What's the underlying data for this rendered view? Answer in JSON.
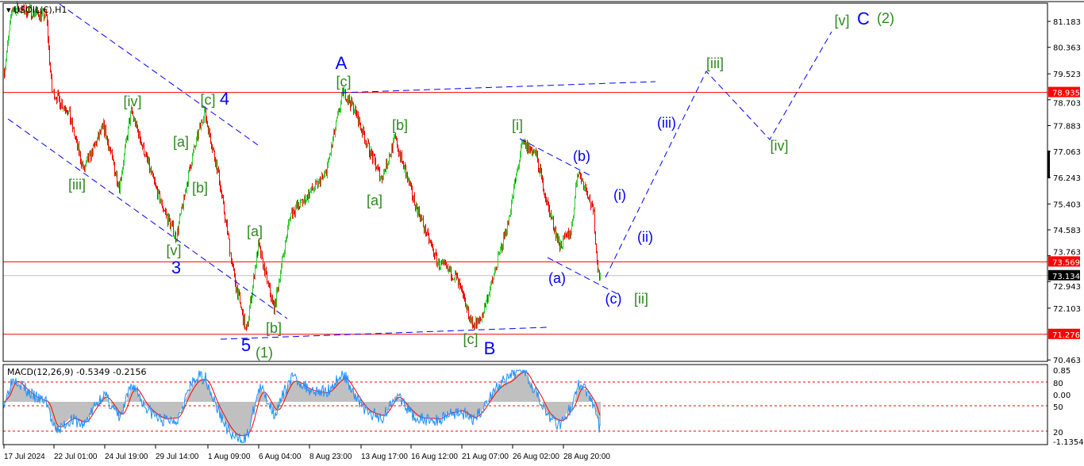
{
  "chart_data": {
    "type": "candlestick",
    "title": "USOIL(€),H1",
    "x_ticks": [
      "17 Jul 2024",
      "22 Jul 01:00",
      "24 Jul 19:00",
      "29 Jul 14:00",
      "1 Aug 09:00",
      "6 Aug 04:00",
      "8 Aug 23:00",
      "13 Aug 17:00",
      "16 Aug 12:00",
      "21 Aug 07:00",
      "26 Aug 02:00",
      "28 Aug 20:00"
    ],
    "y_ticks": [
      "81.183",
      "80.363",
      "79.523",
      "78.703",
      "77.883",
      "77.063",
      "76.243",
      "75.403",
      "74.583",
      "73.763",
      "72.943",
      "72.103",
      "70.463"
    ],
    "ylim": [
      70.4,
      81.6
    ],
    "grid": false,
    "colors": {
      "up": "#32cd32",
      "down": "#ff0000",
      "level": "#ff0000",
      "current": "#c0c0c0",
      "trendline": "#0000ff"
    },
    "horizontal_levels": [
      {
        "label": "78.935",
        "price": 78.935
      },
      {
        "label": "73.569",
        "price": 73.569
      },
      {
        "label": "71.276",
        "price": 71.276
      }
    ],
    "current_price": {
      "label": "73.134",
      "price": 73.134
    },
    "price_path": [
      {
        "t": "17 Jul 00:00",
        "price": 79.6
      },
      {
        "t": "17 Jul 19:00",
        "price": 81.6
      },
      {
        "t": "19 Jul 19:00",
        "price": 81.5
      },
      {
        "t": "21 Jul 06:00",
        "price": 81.35
      },
      {
        "t": "21 Jul 19:00",
        "price": 78.98
      },
      {
        "t": "22 Jul 19:00",
        "price": 78.35
      },
      {
        "t": "23 Jul 15:00",
        "price": 76.46
      },
      {
        "t": "24 Jul 17:00",
        "price": 77.85
      },
      {
        "t": "26 Jul 03:00",
        "price": 75.96
      },
      {
        "t": "27 Jul 06:00",
        "price": 78.35
      },
      {
        "t": "29 Jul 18:00",
        "price": 75.6
      },
      {
        "t": "30 Jul 16:00",
        "price": 74.33
      },
      {
        "t": "31 Jul 12:00",
        "price": 76.84
      },
      {
        "t": "1 Aug 04:00",
        "price": 78.35
      },
      {
        "t": "2 Aug 08:00",
        "price": 76.34
      },
      {
        "t": "3 Aug 20:00",
        "price": 73.08
      },
      {
        "t": "4 Aug 23:00",
        "price": 71.32
      },
      {
        "t": "6 Aug 02:00",
        "price": 74.08
      },
      {
        "t": "7 Aug 00:00",
        "price": 72.08
      },
      {
        "t": "7 Aug 21:00",
        "price": 75.08
      },
      {
        "t": "8 Aug 18:00",
        "price": 75.6
      },
      {
        "t": "10 Aug 10:00",
        "price": 76.34
      },
      {
        "t": "12 Aug 01:00",
        "price": 78.98
      },
      {
        "t": "12 Aug 23:00",
        "price": 78.47
      },
      {
        "t": "14 Aug 04:00",
        "price": 77.1
      },
      {
        "t": "14 Aug 20:00",
        "price": 76.2
      },
      {
        "t": "15 Aug 14:00",
        "price": 77.47
      },
      {
        "t": "16 Aug 16:00",
        "price": 75.6
      },
      {
        "t": "18 Aug 22:00",
        "price": 73.58
      },
      {
        "t": "20 Aug 17:00",
        "price": 73.08
      },
      {
        "t": "22 Aug 06:00",
        "price": 71.57
      },
      {
        "t": "23 Aug 00:00",
        "price": 71.7
      },
      {
        "t": "24 Aug 03:00",
        "price": 72.95
      },
      {
        "t": "25 Aug 15:00",
        "price": 74.84
      },
      {
        "t": "26 Aug 14:00",
        "price": 77.34
      },
      {
        "t": "27 Aug 08:00",
        "price": 76.96
      },
      {
        "t": "27 Aug 23:00",
        "price": 75.34
      },
      {
        "t": "28 Aug 15:00",
        "price": 74.08
      },
      {
        "t": "29 Aug 06:00",
        "price": 74.58
      },
      {
        "t": "29 Aug 14:00",
        "price": 76.46
      },
      {
        "t": "30 Aug 02:00",
        "price": 75.83
      },
      {
        "t": "30 Aug 11:00",
        "price": 75.08
      },
      {
        "t": "30 Aug 15:00",
        "price": 73.58
      },
      {
        "t": "30 Aug 19:00",
        "price": 73.13
      }
    ],
    "indicator": {
      "label": "MACD(12,26,9) -0.5349 -0.2156",
      "y_ticks": [
        "0.85",
        "0.00",
        "-1.1354"
      ],
      "levels": [
        "80",
        "50",
        "20"
      ],
      "colors": {
        "histogram": "#c0c0c0",
        "signal": "#ff0000",
        "line": "#1e90ff"
      }
    },
    "annotations": [
      {
        "text": "[iii]",
        "color": "green"
      },
      {
        "text": "[iv]",
        "color": "green"
      },
      {
        "text": "[a]",
        "color": "green"
      },
      {
        "text": "[c]",
        "color": "green"
      },
      {
        "text": "4",
        "color": "blue"
      },
      {
        "text": "[b]",
        "color": "green"
      },
      {
        "text": "[v]",
        "color": "green"
      },
      {
        "text": "3",
        "color": "blue"
      },
      {
        "text": "[a]",
        "color": "green"
      },
      {
        "text": "[b]",
        "color": "green"
      },
      {
        "text": "5",
        "color": "blue"
      },
      {
        "text": "(1)",
        "color": "green"
      },
      {
        "text": "A",
        "color": "blue"
      },
      {
        "text": "[c]",
        "color": "green"
      },
      {
        "text": "[b]",
        "color": "green"
      },
      {
        "text": "[a]",
        "color": "green"
      },
      {
        "text": "[i]",
        "color": "green"
      },
      {
        "text": "(b)",
        "color": "blue"
      },
      {
        "text": "(i)",
        "color": "blue"
      },
      {
        "text": "(iii)",
        "color": "blue"
      },
      {
        "text": "(ii)",
        "color": "blue"
      },
      {
        "text": "(a)",
        "color": "blue"
      },
      {
        "text": "(c)",
        "color": "blue"
      },
      {
        "text": "[ii]",
        "color": "green"
      },
      {
        "text": "[c]",
        "color": "green"
      },
      {
        "text": "B",
        "color": "blue"
      },
      {
        "text": "[iii]",
        "color": "green"
      },
      {
        "text": "[iv]",
        "color": "green"
      },
      {
        "text": "[v]",
        "color": "green"
      },
      {
        "text": "C",
        "color": "blue"
      },
      {
        "text": "(2)",
        "color": "green"
      }
    ]
  }
}
